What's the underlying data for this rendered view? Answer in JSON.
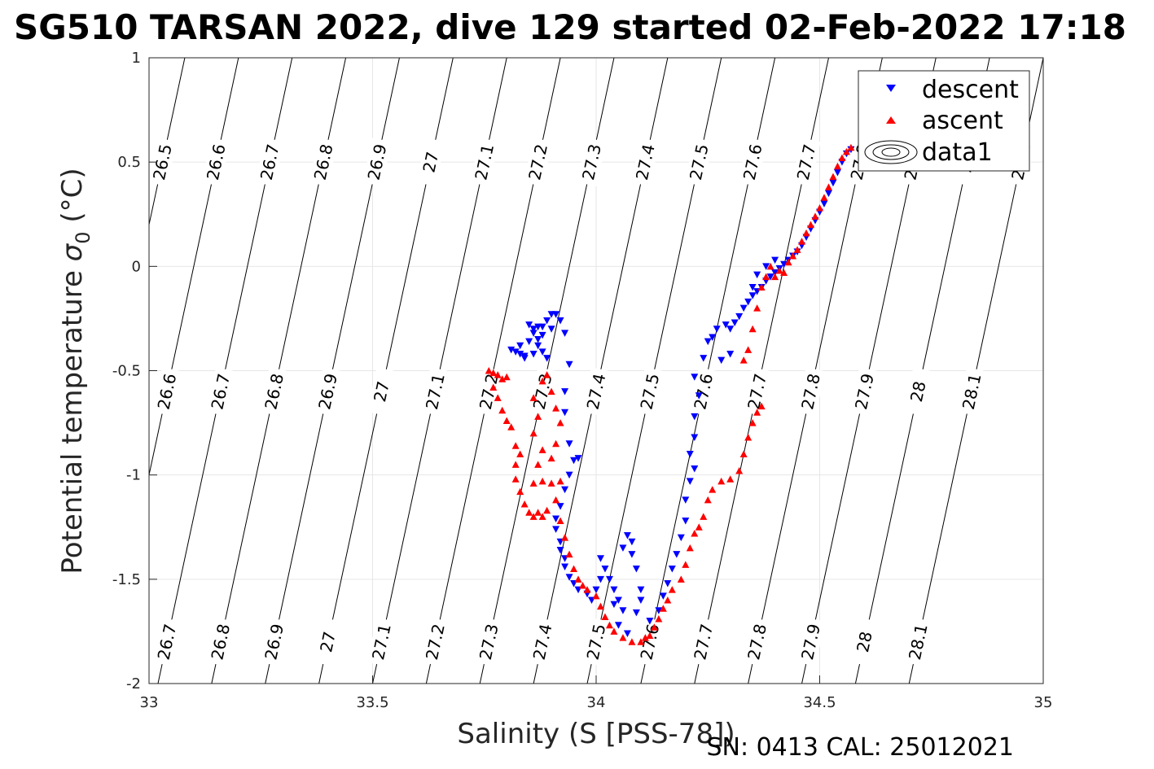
{
  "chart_data": {
    "type": "scatter",
    "title": "SG510 TARSAN 2022, dive 129 started 02-Feb-2022 17:18",
    "xlabel": "Salinity (S [PSS-78])",
    "ylabel_text": "Potential temperature ",
    "ylabel_sigma": "σ",
    "ylabel_sub": "0",
    "ylabel_unit": " (°C)",
    "xlim": [
      33,
      35
    ],
    "ylim": [
      -2,
      1
    ],
    "x_ticks": [
      "33",
      "33.5",
      "34",
      "34.5",
      "35"
    ],
    "y_ticks": [
      "-2",
      "-1.5",
      "-1",
      "-0.5",
      "0",
      "0.5",
      "1"
    ],
    "grid": true,
    "legend_position": "top-right",
    "legend": [
      {
        "label": "descent",
        "marker": "triangle-down",
        "color": "#0000ff"
      },
      {
        "label": "ascent",
        "marker": "triangle-up",
        "color": "#ff0000"
      },
      {
        "label": "data1",
        "marker": "contour",
        "color": "#000000"
      }
    ],
    "density_contours": [
      {
        "sigma": "26.5",
        "s_at_top": 33.08,
        "slope": 0.1
      },
      {
        "sigma": "26.6",
        "s_at_top": 33.2,
        "slope": 0.1
      },
      {
        "sigma": "26.7",
        "s_at_top": 33.32,
        "slope": 0.1
      },
      {
        "sigma": "26.8",
        "s_at_top": 33.44,
        "slope": 0.1
      },
      {
        "sigma": "26.9",
        "s_at_top": 33.56,
        "slope": 0.1
      },
      {
        "sigma": "27",
        "s_at_top": 33.68,
        "slope": 0.1
      },
      {
        "sigma": "27.1",
        "s_at_top": 33.8,
        "slope": 0.1
      },
      {
        "sigma": "27.2",
        "s_at_top": 33.92,
        "slope": 0.1
      },
      {
        "sigma": "27.3",
        "s_at_top": 34.04,
        "slope": 0.1
      },
      {
        "sigma": "27.4",
        "s_at_top": 34.16,
        "slope": 0.1
      },
      {
        "sigma": "27.5",
        "s_at_top": 34.28,
        "slope": 0.1
      },
      {
        "sigma": "27.6",
        "s_at_top": 34.4,
        "slope": 0.1
      },
      {
        "sigma": "27.7",
        "s_at_top": 34.52,
        "slope": 0.1
      },
      {
        "sigma": "27.8",
        "s_at_top": 34.64,
        "slope": 0.1
      },
      {
        "sigma": "27.9",
        "s_at_top": 34.76,
        "slope": 0.1
      },
      {
        "sigma": "28",
        "s_at_top": 34.88,
        "slope": 0.1
      },
      {
        "sigma": "28.1",
        "s_at_top": 35.0,
        "slope": 0.1
      }
    ],
    "series": [
      {
        "name": "descent",
        "color": "#0000ff",
        "marker": "triangle-down",
        "points": [
          [
            33.81,
            -0.4
          ],
          [
            33.82,
            -0.41
          ],
          [
            33.83,
            -0.42
          ],
          [
            33.84,
            -0.44
          ],
          [
            33.83,
            -0.38
          ],
          [
            33.84,
            -0.43
          ],
          [
            33.85,
            -0.36
          ],
          [
            33.86,
            -0.32
          ],
          [
            33.85,
            -0.28
          ],
          [
            33.86,
            -0.3
          ],
          [
            33.87,
            -0.29
          ],
          [
            33.88,
            -0.33
          ],
          [
            33.87,
            -0.38
          ],
          [
            33.86,
            -0.42
          ],
          [
            33.87,
            -0.35
          ],
          [
            33.88,
            -0.29
          ],
          [
            33.89,
            -0.26
          ],
          [
            33.9,
            -0.23
          ],
          [
            33.91,
            -0.23
          ],
          [
            33.92,
            -0.26
          ],
          [
            33.93,
            -0.32
          ],
          [
            33.9,
            -0.3
          ],
          [
            33.88,
            -0.41
          ],
          [
            33.89,
            -0.44
          ],
          [
            33.94,
            -0.47
          ],
          [
            33.93,
            -0.6
          ],
          [
            33.93,
            -0.7
          ],
          [
            33.94,
            -0.85
          ],
          [
            33.95,
            -0.93
          ],
          [
            33.96,
            -0.92
          ],
          [
            33.94,
            -1.0
          ],
          [
            33.93,
            -1.07
          ],
          [
            33.92,
            -1.15
          ],
          [
            33.91,
            -1.21
          ],
          [
            33.91,
            -1.26
          ],
          [
            33.92,
            -1.32
          ],
          [
            33.92,
            -1.36
          ],
          [
            33.93,
            -1.4
          ],
          [
            33.93,
            -1.44
          ],
          [
            33.94,
            -1.49
          ],
          [
            33.95,
            -1.52
          ],
          [
            33.96,
            -1.55
          ],
          [
            33.98,
            -1.57
          ],
          [
            33.99,
            -1.6
          ],
          [
            34.0,
            -1.55
          ],
          [
            34.01,
            -1.5
          ],
          [
            34.02,
            -1.45
          ],
          [
            34.01,
            -1.4
          ],
          [
            34.03,
            -1.5
          ],
          [
            34.04,
            -1.55
          ],
          [
            34.05,
            -1.6
          ],
          [
            34.06,
            -1.35
          ],
          [
            34.07,
            -1.29
          ],
          [
            34.08,
            -1.32
          ],
          [
            34.08,
            -1.38
          ],
          [
            34.09,
            -1.45
          ],
          [
            34.1,
            -1.55
          ],
          [
            34.1,
            -1.6
          ],
          [
            34.09,
            -1.66
          ],
          [
            34.06,
            -1.65
          ],
          [
            34.04,
            -1.62
          ],
          [
            34.05,
            -1.72
          ],
          [
            34.07,
            -1.76
          ],
          [
            34.12,
            -1.7
          ],
          [
            34.14,
            -1.65
          ],
          [
            34.15,
            -1.58
          ],
          [
            34.16,
            -1.52
          ],
          [
            34.17,
            -1.45
          ],
          [
            34.18,
            -1.38
          ],
          [
            34.19,
            -1.3
          ],
          [
            34.2,
            -1.22
          ],
          [
            34.2,
            -1.12
          ],
          [
            34.21,
            -1.03
          ],
          [
            34.22,
            -0.97
          ],
          [
            34.21,
            -0.9
          ],
          [
            34.22,
            -0.82
          ],
          [
            34.22,
            -0.72
          ],
          [
            34.23,
            -0.62
          ],
          [
            34.22,
            -0.53
          ],
          [
            34.24,
            -0.44
          ],
          [
            34.25,
            -0.36
          ],
          [
            34.26,
            -0.34
          ],
          [
            34.27,
            -0.3
          ],
          [
            34.29,
            -0.28
          ],
          [
            34.3,
            -0.3
          ],
          [
            34.31,
            -0.27
          ],
          [
            34.32,
            -0.24
          ],
          [
            34.33,
            -0.2
          ],
          [
            34.34,
            -0.17
          ],
          [
            34.35,
            -0.14
          ],
          [
            34.36,
            -0.12
          ],
          [
            34.37,
            -0.1
          ],
          [
            34.38,
            -0.07
          ],
          [
            34.39,
            -0.05
          ],
          [
            34.4,
            -0.03
          ],
          [
            34.41,
            -0.01
          ],
          [
            34.42,
            0.01
          ],
          [
            34.43,
            0.03
          ],
          [
            34.44,
            0.05
          ],
          [
            34.45,
            0.07
          ],
          [
            34.46,
            0.1
          ],
          [
            34.47,
            0.14
          ],
          [
            34.48,
            0.18
          ],
          [
            34.49,
            0.22
          ],
          [
            34.5,
            0.26
          ],
          [
            34.51,
            0.3
          ],
          [
            34.52,
            0.35
          ],
          [
            34.53,
            0.4
          ],
          [
            34.54,
            0.45
          ],
          [
            34.55,
            0.5
          ],
          [
            34.56,
            0.54
          ],
          [
            34.57,
            0.56
          ],
          [
            34.28,
            -0.45
          ],
          [
            34.3,
            -0.42
          ],
          [
            34.36,
            -0.04
          ],
          [
            34.35,
            -0.1
          ],
          [
            34.38,
            0.0
          ],
          [
            34.4,
            0.03
          ]
        ]
      },
      {
        "name": "ascent",
        "color": "#ff0000",
        "marker": "triangle-up",
        "points": [
          [
            33.76,
            -0.5
          ],
          [
            33.77,
            -0.51
          ],
          [
            33.78,
            -0.52
          ],
          [
            33.79,
            -0.54
          ],
          [
            33.8,
            -0.53
          ],
          [
            33.77,
            -0.58
          ],
          [
            33.78,
            -0.63
          ],
          [
            33.79,
            -0.69
          ],
          [
            33.8,
            -0.74
          ],
          [
            33.81,
            -0.77
          ],
          [
            33.82,
            -0.86
          ],
          [
            33.83,
            -0.9
          ],
          [
            33.82,
            -0.95
          ],
          [
            33.82,
            -1.02
          ],
          [
            33.83,
            -1.08
          ],
          [
            33.84,
            -1.14
          ],
          [
            33.85,
            -1.18
          ],
          [
            33.86,
            -1.2
          ],
          [
            33.87,
            -1.18
          ],
          [
            33.88,
            -1.2
          ],
          [
            33.89,
            -1.17
          ],
          [
            33.86,
            -1.04
          ],
          [
            33.88,
            -1.03
          ],
          [
            33.9,
            -1.04
          ],
          [
            33.92,
            -1.03
          ],
          [
            33.87,
            -0.95
          ],
          [
            33.88,
            -0.88
          ],
          [
            33.86,
            -0.8
          ],
          [
            33.87,
            -0.72
          ],
          [
            33.86,
            -0.63
          ],
          [
            33.88,
            -0.55
          ],
          [
            33.89,
            -0.52
          ],
          [
            33.9,
            -0.6
          ],
          [
            33.91,
            -0.68
          ],
          [
            33.92,
            -0.75
          ],
          [
            33.91,
            -0.85
          ],
          [
            33.9,
            -0.92
          ],
          [
            33.91,
            -1.12
          ],
          [
            33.92,
            -1.22
          ],
          [
            33.93,
            -1.3
          ],
          [
            33.94,
            -1.38
          ],
          [
            33.95,
            -1.45
          ],
          [
            33.96,
            -1.5
          ],
          [
            33.97,
            -1.53
          ],
          [
            33.98,
            -1.55
          ],
          [
            34.0,
            -1.58
          ],
          [
            34.01,
            -1.63
          ],
          [
            34.02,
            -1.68
          ],
          [
            34.03,
            -1.72
          ],
          [
            34.04,
            -1.75
          ],
          [
            34.06,
            -1.78
          ],
          [
            34.08,
            -1.8
          ],
          [
            34.1,
            -1.8
          ],
          [
            34.11,
            -1.78
          ],
          [
            34.12,
            -1.77
          ],
          [
            34.13,
            -1.73
          ],
          [
            34.14,
            -1.69
          ],
          [
            34.15,
            -1.64
          ],
          [
            34.16,
            -1.6
          ],
          [
            34.17,
            -1.55
          ],
          [
            34.19,
            -1.5
          ],
          [
            34.2,
            -1.43
          ],
          [
            34.21,
            -1.35
          ],
          [
            34.22,
            -1.28
          ],
          [
            34.23,
            -1.25
          ],
          [
            34.24,
            -1.2
          ],
          [
            34.25,
            -1.12
          ],
          [
            34.26,
            -1.07
          ],
          [
            34.28,
            -1.03
          ],
          [
            34.3,
            -1.02
          ],
          [
            34.32,
            -0.98
          ],
          [
            34.33,
            -0.9
          ],
          [
            34.34,
            -0.82
          ],
          [
            34.35,
            -0.75
          ],
          [
            34.36,
            -0.7
          ],
          [
            34.37,
            -0.67
          ],
          [
            34.33,
            -0.45
          ],
          [
            34.34,
            -0.4
          ],
          [
            34.35,
            -0.3
          ],
          [
            34.36,
            -0.2
          ],
          [
            34.37,
            -0.1
          ],
          [
            34.38,
            -0.05
          ],
          [
            34.39,
            0.0
          ],
          [
            34.4,
            -0.05
          ],
          [
            34.41,
            -0.02
          ],
          [
            34.42,
            -0.03
          ],
          [
            34.43,
            0.02
          ],
          [
            34.44,
            0.05
          ],
          [
            34.45,
            0.08
          ],
          [
            34.46,
            0.12
          ],
          [
            34.47,
            0.16
          ],
          [
            34.48,
            0.2
          ],
          [
            34.49,
            0.24
          ],
          [
            34.5,
            0.28
          ],
          [
            34.51,
            0.33
          ],
          [
            34.52,
            0.38
          ],
          [
            34.53,
            0.43
          ],
          [
            34.54,
            0.48
          ],
          [
            34.55,
            0.52
          ],
          [
            34.56,
            0.55
          ],
          [
            34.57,
            0.57
          ]
        ]
      }
    ]
  },
  "footer": "SN: 0413  CAL: 25012021"
}
